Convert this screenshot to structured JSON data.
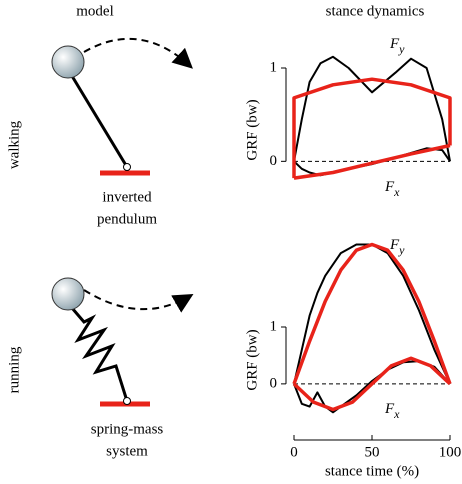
{
  "headers": {
    "model": "model",
    "dynamics": "stance dynamics"
  },
  "rows": [
    {
      "label": "walking",
      "caption": [
        "inverted",
        "pendulum"
      ]
    },
    {
      "label": "running",
      "caption": [
        "spring-mass",
        "system"
      ]
    }
  ],
  "chart_data": [
    {
      "type": "line",
      "ylabel": "GRF (bw)",
      "xlim": [
        0,
        100
      ],
      "ylim": [
        -0.2,
        1.15
      ],
      "yticks": [
        0,
        1
      ],
      "reference_line": 0,
      "x": [
        0,
        5,
        10,
        17,
        25,
        35,
        50,
        65,
        75,
        85,
        95,
        100
      ],
      "annotations": [
        {
          "text": "F",
          "sub": "y"
        },
        {
          "text": "F",
          "sub": "x"
        }
      ],
      "series": [
        {
          "color": "#000000",
          "values": [
            0,
            0.45,
            0.85,
            1.05,
            1.12,
            1.0,
            0.74,
            0.95,
            1.1,
            1.0,
            0.45,
            0
          ]
        },
        {
          "color": "#000000",
          "values": [
            0,
            -0.08,
            -0.12,
            -0.15,
            -0.12,
            -0.08,
            -0.03,
            0.04,
            0.09,
            0.14,
            0.12,
            0
          ]
        },
        {
          "color": "#e8231a",
          "x": [
            0,
            0,
            25,
            50,
            75,
            100,
            100
          ],
          "values": [
            -0.18,
            0.68,
            0.82,
            0.88,
            0.82,
            0.68,
            0.17
          ]
        },
        {
          "color": "#e8231a",
          "x": [
            0,
            25,
            50,
            75,
            100
          ],
          "values": [
            -0.18,
            -0.12,
            -0.02,
            0.08,
            0.17
          ]
        }
      ]
    },
    {
      "type": "line",
      "ylabel": "GRF (bw)",
      "xlabel": "stance time (%)",
      "xlim": [
        0,
        100
      ],
      "ylim": [
        -0.6,
        2.6
      ],
      "xticks": [
        0,
        50,
        100
      ],
      "yticks": [
        0,
        1
      ],
      "reference_line": 0,
      "x": [
        0,
        5,
        10,
        15,
        20,
        25,
        30,
        40,
        50,
        60,
        70,
        80,
        90,
        100
      ],
      "annotations": [
        {
          "text": "F",
          "sub": "y"
        },
        {
          "text": "F",
          "sub": "x"
        }
      ],
      "series": [
        {
          "color": "#000000",
          "values": [
            0,
            0.6,
            1.2,
            1.6,
            1.9,
            2.1,
            2.3,
            2.45,
            2.45,
            2.3,
            1.9,
            1.3,
            0.6,
            0
          ]
        },
        {
          "color": "#000000",
          "values": [
            0,
            -0.35,
            -0.4,
            -0.15,
            -0.4,
            -0.5,
            -0.4,
            -0.2,
            0.05,
            0.25,
            0.38,
            0.4,
            0.3,
            0
          ]
        },
        {
          "color": "#e8231a",
          "x": [
            0,
            10,
            20,
            30,
            40,
            50,
            60,
            70,
            80,
            90,
            100
          ],
          "values": [
            0,
            0.75,
            1.45,
            2.0,
            2.35,
            2.45,
            2.35,
            2.0,
            1.45,
            0.75,
            0
          ]
        },
        {
          "color": "#e8231a",
          "x": [
            0,
            12.5,
            25,
            37.5,
            50,
            62.5,
            75,
            87.5,
            100
          ],
          "values": [
            0,
            -0.32,
            -0.45,
            -0.32,
            0,
            0.32,
            0.45,
            0.32,
            0
          ]
        }
      ]
    }
  ]
}
